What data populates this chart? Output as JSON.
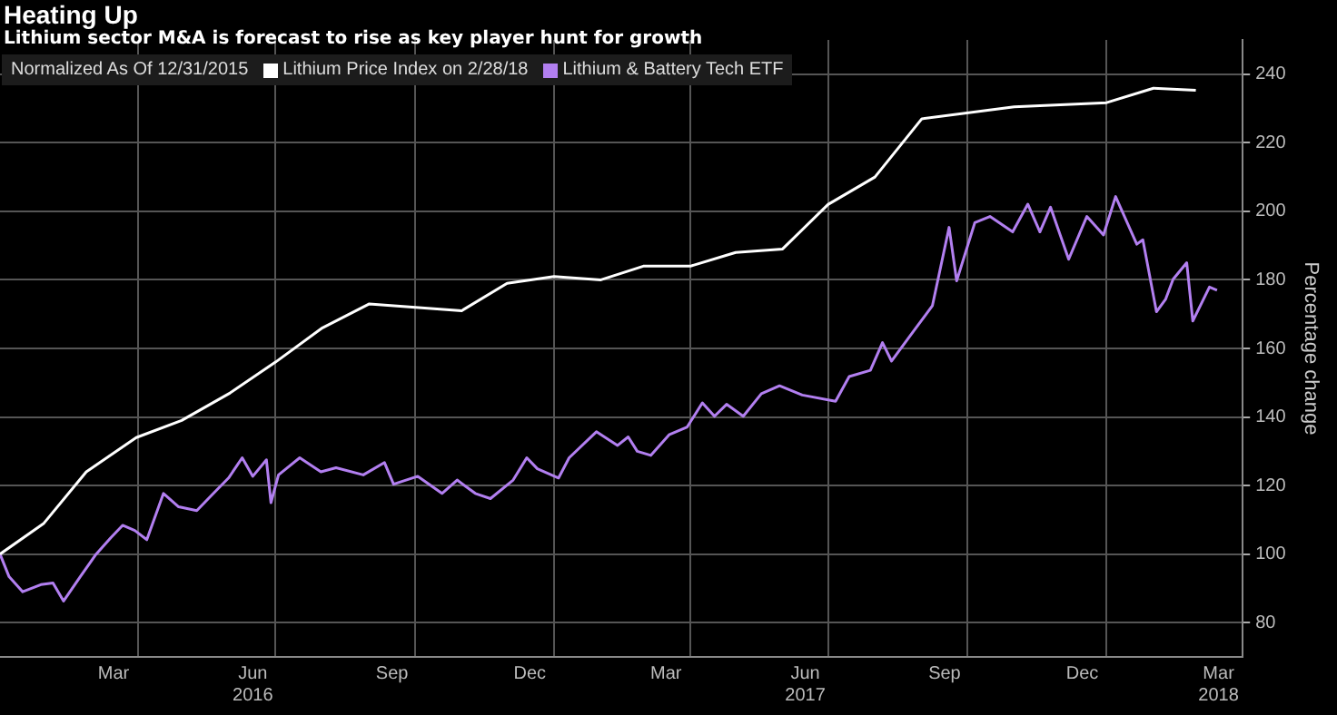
{
  "chart_data": {
    "type": "line",
    "title": "Heating Up",
    "subtitle": "Lithium sector M&A is forecast to rise as key player hunt for growth",
    "ylabel": "Percentage change",
    "legend_title": "Normalized As Of 12/31/2015",
    "legend": "top left",
    "grid": true,
    "marker": "none",
    "line_style": "solid",
    "xlim": [
      "2015-12-31",
      "2018-03-31"
    ],
    "xticks": [
      {
        "value": "2016-03-15",
        "label": "Mar"
      },
      {
        "value": "2016-03-31",
        "label": null
      },
      {
        "value": "2016-06-15",
        "label": "Jun\n2016"
      },
      {
        "value": "2016-06-30",
        "label": null
      },
      {
        "value": "2016-09-15",
        "label": "Sep"
      },
      {
        "value": "2016-09-30",
        "label": null
      },
      {
        "value": "2016-12-15",
        "label": "Dec"
      },
      {
        "value": "2016-12-31",
        "label": null
      },
      {
        "value": "2017-03-15",
        "label": "Mar"
      },
      {
        "value": "2017-03-31",
        "label": null
      },
      {
        "value": "2017-06-15",
        "label": "Jun\n2017"
      },
      {
        "value": "2017-06-30",
        "label": null
      },
      {
        "value": "2017-09-15",
        "label": "Sep"
      },
      {
        "value": "2017-09-30",
        "label": null
      },
      {
        "value": "2017-12-15",
        "label": "Dec"
      },
      {
        "value": "2017-12-31",
        "label": null
      },
      {
        "value": "2018-03-15",
        "label": "Mar\n2018"
      }
    ],
    "ylim": [
      70,
      250
    ],
    "yticks": [
      80,
      100,
      120,
      140,
      160,
      180,
      200,
      220,
      240
    ],
    "series": [
      {
        "name": "Lithium Price Index on 2/28/18",
        "color": "#ffffff",
        "x": [
          "2015-12-31",
          "2016-01-29",
          "2016-02-26",
          "2016-03-30",
          "2016-04-29",
          "2016-05-31",
          "2016-06-30",
          "2016-07-31",
          "2016-08-31",
          "2016-10-31",
          "2016-11-30",
          "2016-12-31",
          "2017-01-31",
          "2017-02-28",
          "2017-03-31",
          "2017-04-30",
          "2017-05-31",
          "2017-06-30",
          "2017-07-31",
          "2017-08-31",
          "2017-10-31",
          "2017-12-31",
          "2018-01-31",
          "2018-02-28"
        ],
        "values": [
          100,
          109,
          124,
          134,
          139,
          147,
          156,
          166,
          173,
          171,
          179,
          181,
          180,
          184,
          184,
          188,
          189,
          202,
          210,
          227,
          230.5,
          231.7,
          235.9,
          235.3
        ]
      },
      {
        "name": "Lithium & Battery Tech ETF",
        "color": "#b27ff0",
        "x": [
          "2015-12-31",
          "2016-01-06",
          "2016-01-15",
          "2016-01-27",
          "2016-02-04",
          "2016-02-11",
          "2016-02-22",
          "2016-03-03",
          "2016-03-13",
          "2016-03-21",
          "2016-03-29",
          "2016-04-06",
          "2016-04-17",
          "2016-04-27",
          "2016-05-09",
          "2016-05-20",
          "2016-05-30",
          "2016-06-08",
          "2016-06-15",
          "2016-06-24",
          "2016-06-27",
          "2016-07-02",
          "2016-07-16",
          "2016-07-30",
          "2016-08-09",
          "2016-08-27",
          "2016-09-10",
          "2016-09-16",
          "2016-10-02",
          "2016-10-18",
          "2016-10-28",
          "2016-11-09",
          "2016-11-19",
          "2016-12-04",
          "2016-12-13",
          "2016-12-20",
          "2017-01-03",
          "2017-01-10",
          "2017-01-28",
          "2017-02-11",
          "2017-02-18",
          "2017-02-24",
          "2017-03-05",
          "2017-03-17",
          "2017-03-29",
          "2017-04-08",
          "2017-04-16",
          "2017-04-24",
          "2017-05-05",
          "2017-05-17",
          "2017-05-29",
          "2017-06-13",
          "2017-07-05",
          "2017-07-14",
          "2017-07-28",
          "2017-08-05",
          "2017-08-11",
          "2017-08-26",
          "2017-09-07",
          "2017-09-18",
          "2017-09-23",
          "2017-10-05",
          "2017-10-15",
          "2017-10-30",
          "2017-11-09",
          "2017-11-17",
          "2017-11-24",
          "2017-12-06",
          "2017-12-18",
          "2017-12-29",
          "2018-01-06",
          "2018-01-20",
          "2018-01-24",
          "2018-02-02",
          "2018-02-08",
          "2018-02-13",
          "2018-02-22",
          "2018-02-26",
          "2018-03-04",
          "2018-03-09",
          "2018-03-14"
        ],
        "values": [
          100,
          93.4,
          89,
          91.1,
          91.6,
          86.3,
          93.4,
          99.7,
          104.7,
          108.4,
          106.9,
          104.2,
          117.7,
          113.8,
          112.7,
          117.7,
          122.2,
          128.1,
          122.7,
          127.5,
          115,
          123.1,
          128.1,
          124,
          125.2,
          123.1,
          126.7,
          120.4,
          122.7,
          117.7,
          121.6,
          117.7,
          116.2,
          121.6,
          128.1,
          124.9,
          122.2,
          128.1,
          135.7,
          131.7,
          134.2,
          130,
          128.8,
          134.8,
          137.1,
          144.1,
          140.2,
          143.7,
          140.2,
          146.8,
          149.1,
          146.4,
          144.6,
          151.8,
          153.6,
          161.7,
          156.3,
          165.3,
          172.5,
          195.3,
          179.7,
          196.7,
          198.5,
          194,
          202.1,
          194,
          201.2,
          186,
          198.5,
          193.1,
          204.3,
          190.4,
          191.7,
          170.7,
          174.3,
          180.2,
          185,
          168,
          173.4,
          177.9,
          177
        ]
      }
    ]
  }
}
